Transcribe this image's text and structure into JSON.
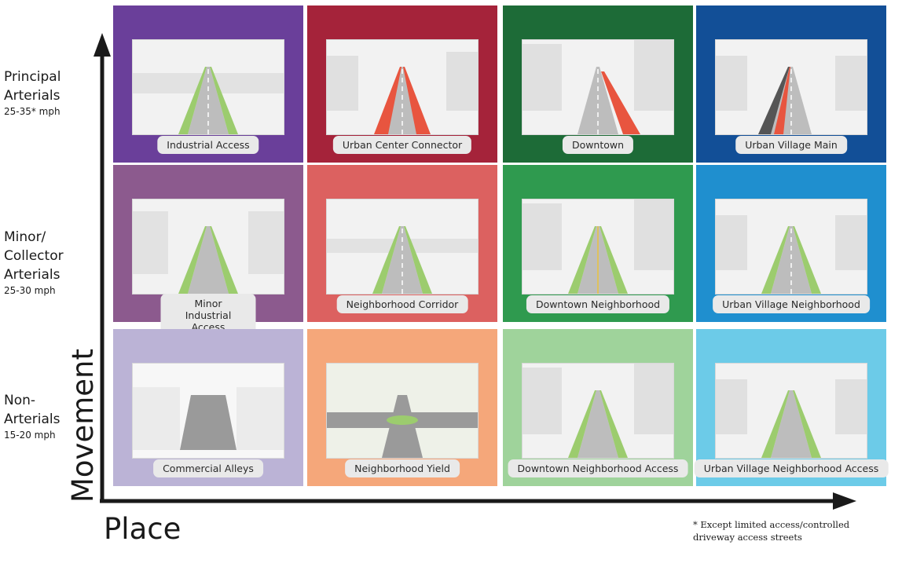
{
  "rows": [
    {
      "title": "Principal\nArterials",
      "speed": "25-35* mph"
    },
    {
      "title": "Minor/\nCollector\nArterials",
      "speed": "25-30 mph"
    },
    {
      "title": "Non-\nArterials",
      "speed": "15-20 mph"
    }
  ],
  "cells": [
    {
      "label": "Industrial Access",
      "color": "#6a3f9a"
    },
    {
      "label": "Urban Center Connector",
      "color": "#a5233a"
    },
    {
      "label": "Downtown",
      "color": "#1d6b37"
    },
    {
      "label": "Urban Village Main",
      "color": "#124f97"
    },
    {
      "label": "Minor Industrial Access\n(non-arterials in MIC)",
      "color": "#8c5a8e"
    },
    {
      "label": "Neighborhood Corridor",
      "color": "#dc6160"
    },
    {
      "label": "Downtown Neighborhood",
      "color": "#2f9a4f"
    },
    {
      "label": "Urban Village Neighborhood",
      "color": "#1f8fcf"
    },
    {
      "label": "Commercial Alleys",
      "color": "#bbb3d6"
    },
    {
      "label": "Neighborhood Yield",
      "color": "#f5a77a"
    },
    {
      "label": "Downtown Neighborhood Access",
      "color": "#9fd39b"
    },
    {
      "label": "Urban Village Neighborhood Access",
      "color": "#6ccbe8"
    }
  ],
  "axis": {
    "vertical": "Movement",
    "horizontal": "Place"
  },
  "footnote": "* Except limited access/controlled driveway access streets",
  "colors": {
    "axis": "#1a1a1a",
    "pill": "#e9e9e9",
    "road": "#b8b8b8",
    "green": "#9ccc6e"
  }
}
